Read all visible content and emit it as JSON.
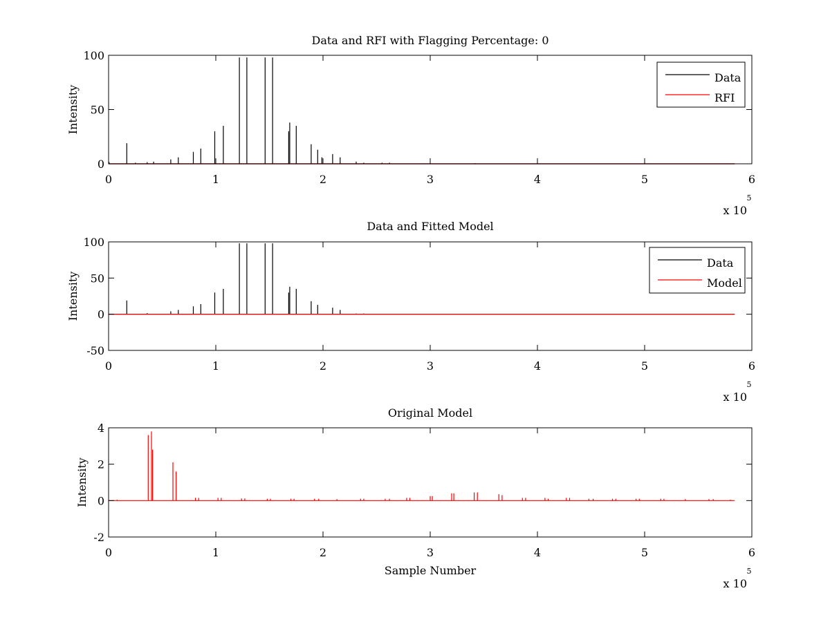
{
  "figure": {
    "background": "#ffffff",
    "colors": {
      "data": "#000000",
      "rfi": "#ff0000",
      "axes": "#000000"
    }
  },
  "chart_data": [
    {
      "type": "line",
      "title": "Data and RFI with Flagging Percentage: 0",
      "xlabel": "",
      "ylabel": "Intensity",
      "xlim": [
        0,
        6
      ],
      "ylim": [
        0,
        100
      ],
      "x_multiplier_label": {
        "base": "x 10",
        "power": "5"
      },
      "xticks": [
        "0",
        "1",
        "2",
        "3",
        "4",
        "5",
        "6"
      ],
      "yticks": [
        "0",
        "50",
        "100"
      ],
      "baseline_end": 5.84,
      "legend": {
        "position": "top-right",
        "entries": [
          "Data",
          "RFI"
        ]
      },
      "series": [
        {
          "name": "Data",
          "color": "#000000",
          "baseline": 0,
          "spikes": [
            [
              0.005,
              1.5
            ],
            [
              0.17,
              19
            ],
            [
              0.25,
              1
            ],
            [
              0.36,
              1.5
            ],
            [
              0.42,
              2
            ],
            [
              0.58,
              4
            ],
            [
              0.65,
              6
            ],
            [
              0.79,
              11
            ],
            [
              0.86,
              14
            ],
            [
              0.99,
              30
            ],
            [
              1.07,
              35
            ],
            [
              1.22,
              98
            ],
            [
              1.29,
              98
            ],
            [
              1.46,
              98
            ],
            [
              1.53,
              98
            ],
            [
              1.68,
              30
            ],
            [
              1.69,
              38
            ],
            [
              1.75,
              35
            ],
            [
              1.89,
              18
            ],
            [
              1.95,
              13
            ],
            [
              1.99,
              6
            ],
            [
              2.09,
              9
            ],
            [
              2.16,
              6
            ],
            [
              2.31,
              2
            ],
            [
              2.38,
              1
            ],
            [
              2.55,
              1
            ],
            [
              2.62,
              1
            ],
            [
              3.0,
              0.5
            ],
            [
              3.42,
              0.5
            ],
            [
              3.62,
              0.3
            ],
            [
              4.9,
              0.3
            ],
            [
              5.17,
              0.3
            ],
            [
              5.5,
              0.3
            ]
          ]
        },
        {
          "name": "RFI",
          "color": "#ff0000",
          "baseline": 0,
          "spikes": []
        }
      ]
    },
    {
      "type": "line",
      "title": "Data and Fitted Model",
      "xlabel": "",
      "ylabel": "Intensity",
      "xlim": [
        0,
        6
      ],
      "ylim": [
        -50,
        100
      ],
      "x_multiplier_label": {
        "base": "x 10",
        "power": "5"
      },
      "xticks": [
        "0",
        "1",
        "2",
        "3",
        "4",
        "5",
        "6"
      ],
      "yticks": [
        "-50",
        "0",
        "50",
        "100"
      ],
      "baseline_end": 5.84,
      "legend": {
        "position": "top-right",
        "entries": [
          "Data",
          "Model"
        ]
      },
      "series": [
        {
          "name": "Data",
          "color": "#000000",
          "baseline": 0,
          "spikes": [
            [
              0.17,
              19
            ],
            [
              0.36,
              1.5
            ],
            [
              0.58,
              4
            ],
            [
              0.65,
              6
            ],
            [
              0.79,
              11
            ],
            [
              0.86,
              14
            ],
            [
              0.99,
              30
            ],
            [
              1.07,
              35
            ],
            [
              1.22,
              98
            ],
            [
              1.29,
              98
            ],
            [
              1.46,
              98
            ],
            [
              1.53,
              98
            ],
            [
              1.68,
              30
            ],
            [
              1.69,
              38
            ],
            [
              1.75,
              35
            ],
            [
              1.89,
              18
            ],
            [
              1.95,
              13
            ],
            [
              2.09,
              9
            ],
            [
              2.16,
              6
            ],
            [
              2.31,
              1
            ],
            [
              2.38,
              1
            ]
          ]
        },
        {
          "name": "Model",
          "color": "#ff0000",
          "baseline": 0,
          "spikes": []
        }
      ]
    },
    {
      "type": "line",
      "title": "Original Model",
      "xlabel": "Sample Number",
      "ylabel": "Intensity",
      "xlim": [
        0,
        6
      ],
      "ylim": [
        -2,
        4
      ],
      "x_multiplier_label": {
        "base": "x 10",
        "power": "5"
      },
      "xticks": [
        "0",
        "1",
        "2",
        "3",
        "4",
        "5",
        "6"
      ],
      "yticks": [
        "-2",
        "0",
        "2",
        "4"
      ],
      "baseline_end": 5.84,
      "legend": null,
      "series": [
        {
          "color": "#ff0000",
          "baseline": 0,
          "spikes": [
            [
              0.08,
              0.05
            ],
            [
              0.37,
              3.6
            ],
            [
              0.4,
              3.8
            ],
            [
              0.41,
              2.8
            ],
            [
              0.6,
              2.1
            ],
            [
              0.63,
              1.6
            ],
            [
              0.81,
              0.15
            ],
            [
              0.84,
              0.15
            ],
            [
              1.02,
              0.15
            ],
            [
              1.05,
              0.15
            ],
            [
              1.24,
              0.12
            ],
            [
              1.27,
              0.12
            ],
            [
              1.48,
              0.1
            ],
            [
              1.51,
              0.1
            ],
            [
              1.7,
              0.1
            ],
            [
              1.73,
              0.1
            ],
            [
              1.92,
              0.1
            ],
            [
              1.96,
              0.1
            ],
            [
              2.13,
              0.08
            ],
            [
              2.35,
              0.1
            ],
            [
              2.38,
              0.1
            ],
            [
              2.58,
              0.1
            ],
            [
              2.62,
              0.1
            ],
            [
              2.78,
              0.15
            ],
            [
              2.81,
              0.15
            ],
            [
              3.0,
              0.25
            ],
            [
              3.02,
              0.25
            ],
            [
              3.2,
              0.4
            ],
            [
              3.22,
              0.4
            ],
            [
              3.41,
              0.45
            ],
            [
              3.44,
              0.45
            ],
            [
              3.64,
              0.35
            ],
            [
              3.67,
              0.3
            ],
            [
              3.86,
              0.15
            ],
            [
              3.89,
              0.15
            ],
            [
              4.07,
              0.15
            ],
            [
              4.1,
              0.1
            ],
            [
              4.27,
              0.15
            ],
            [
              4.3,
              0.15
            ],
            [
              4.48,
              0.1
            ],
            [
              4.52,
              0.1
            ],
            [
              4.7,
              0.1
            ],
            [
              4.73,
              0.1
            ],
            [
              4.92,
              0.1
            ],
            [
              4.95,
              0.1
            ],
            [
              5.15,
              0.1
            ],
            [
              5.18,
              0.1
            ],
            [
              5.38,
              0.08
            ],
            [
              5.6,
              0.08
            ],
            [
              5.64,
              0.08
            ],
            [
              5.8,
              0.05
            ]
          ]
        }
      ]
    }
  ]
}
